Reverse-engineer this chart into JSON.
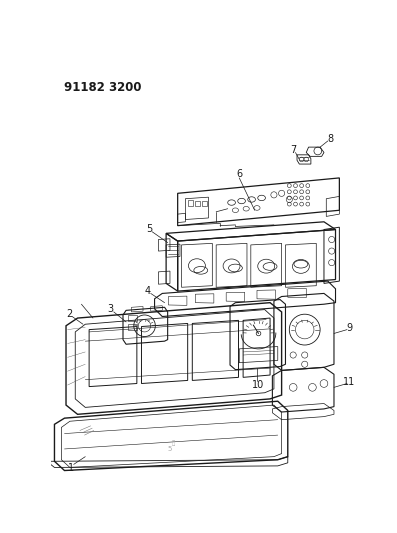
{
  "bg_color": "#ffffff",
  "line_color": "#1a1a1a",
  "header_text": "91182 3200",
  "fig_width": 3.97,
  "fig_height": 5.33,
  "dpi": 100
}
